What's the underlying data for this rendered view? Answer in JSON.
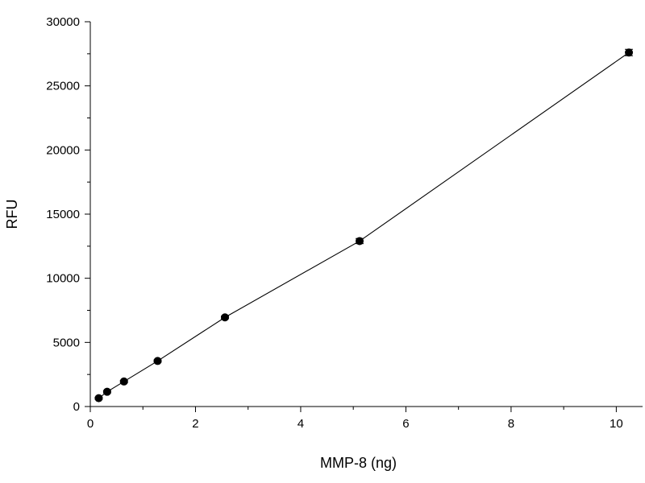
{
  "chart_data": {
    "type": "scatter",
    "title": "",
    "xlabel": "MMP-8 (ng)",
    "ylabel": "RFU",
    "xlim": [
      0,
      10.5
    ],
    "ylim": [
      0,
      30000
    ],
    "x_ticks": [
      0,
      2,
      4,
      6,
      8,
      10
    ],
    "y_ticks": [
      0,
      5000,
      10000,
      15000,
      20000,
      25000,
      30000
    ],
    "grid": false,
    "legend": "none",
    "series": [
      {
        "x": [
          0.16,
          0.32,
          0.64,
          1.28,
          2.56,
          5.12,
          10.24
        ],
        "y": [
          650,
          1150,
          1950,
          3550,
          6950,
          12900,
          27600
        ],
        "error": [
          80,
          90,
          80,
          80,
          100,
          200,
          250
        ],
        "marker": "filled-circle",
        "line": "connected"
      }
    ],
    "colors": {
      "series": "#000000",
      "axes": "#000000",
      "background": "#ffffff"
    }
  }
}
